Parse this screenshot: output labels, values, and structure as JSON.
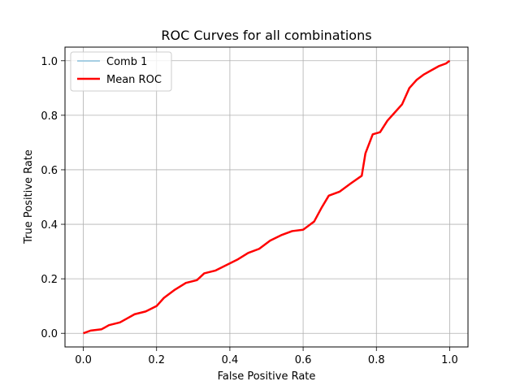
{
  "chart_data": {
    "type": "line",
    "title": "ROC Curves for all combinations",
    "xlabel": "False Positive Rate",
    "ylabel": "True Positive Rate",
    "xlim": [
      -0.05,
      1.05
    ],
    "ylim": [
      -0.05,
      1.05
    ],
    "xticks": [
      0.0,
      0.2,
      0.4,
      0.6,
      0.8,
      1.0
    ],
    "yticks": [
      0.0,
      0.2,
      0.4,
      0.6,
      0.8,
      1.0
    ],
    "xtick_labels": [
      "0.0",
      "0.2",
      "0.4",
      "0.6",
      "0.8",
      "1.0"
    ],
    "ytick_labels": [
      "0.0",
      "0.2",
      "0.4",
      "0.6",
      "0.8",
      "1.0"
    ],
    "grid": true,
    "legend": "top-left",
    "series": [
      {
        "name": "Comb 1",
        "color": "#a6cee3",
        "x": [
          0.0,
          0.02,
          0.05,
          0.07,
          0.1,
          0.12,
          0.14,
          0.17,
          0.2,
          0.22,
          0.25,
          0.28,
          0.31,
          0.33,
          0.36,
          0.39,
          0.42,
          0.45,
          0.48,
          0.51,
          0.54,
          0.57,
          0.6,
          0.63,
          0.65,
          0.67,
          0.7,
          0.73,
          0.76,
          0.77,
          0.79,
          0.81,
          0.83,
          0.85,
          0.87,
          0.89,
          0.91,
          0.93,
          0.95,
          0.97,
          0.99,
          1.0
        ],
        "y": [
          0.0,
          0.01,
          0.015,
          0.03,
          0.04,
          0.055,
          0.07,
          0.08,
          0.1,
          0.13,
          0.16,
          0.185,
          0.195,
          0.22,
          0.23,
          0.25,
          0.27,
          0.295,
          0.31,
          0.34,
          0.36,
          0.375,
          0.38,
          0.41,
          0.46,
          0.505,
          0.52,
          0.55,
          0.578,
          0.66,
          0.73,
          0.738,
          0.78,
          0.81,
          0.84,
          0.9,
          0.93,
          0.95,
          0.965,
          0.98,
          0.99,
          1.0
        ]
      },
      {
        "name": "Mean ROC",
        "color": "#ff0000",
        "x": [
          0.0,
          0.02,
          0.05,
          0.07,
          0.1,
          0.12,
          0.14,
          0.17,
          0.2,
          0.22,
          0.25,
          0.28,
          0.31,
          0.33,
          0.36,
          0.39,
          0.42,
          0.45,
          0.48,
          0.51,
          0.54,
          0.57,
          0.6,
          0.63,
          0.65,
          0.67,
          0.7,
          0.73,
          0.76,
          0.77,
          0.79,
          0.81,
          0.83,
          0.85,
          0.87,
          0.89,
          0.91,
          0.93,
          0.95,
          0.97,
          0.99,
          1.0
        ],
        "y": [
          0.0,
          0.01,
          0.015,
          0.03,
          0.04,
          0.055,
          0.07,
          0.08,
          0.1,
          0.13,
          0.16,
          0.185,
          0.195,
          0.22,
          0.23,
          0.25,
          0.27,
          0.295,
          0.31,
          0.34,
          0.36,
          0.375,
          0.38,
          0.41,
          0.46,
          0.505,
          0.52,
          0.55,
          0.578,
          0.66,
          0.73,
          0.738,
          0.78,
          0.81,
          0.84,
          0.9,
          0.93,
          0.95,
          0.965,
          0.98,
          0.99,
          1.0
        ]
      }
    ]
  }
}
